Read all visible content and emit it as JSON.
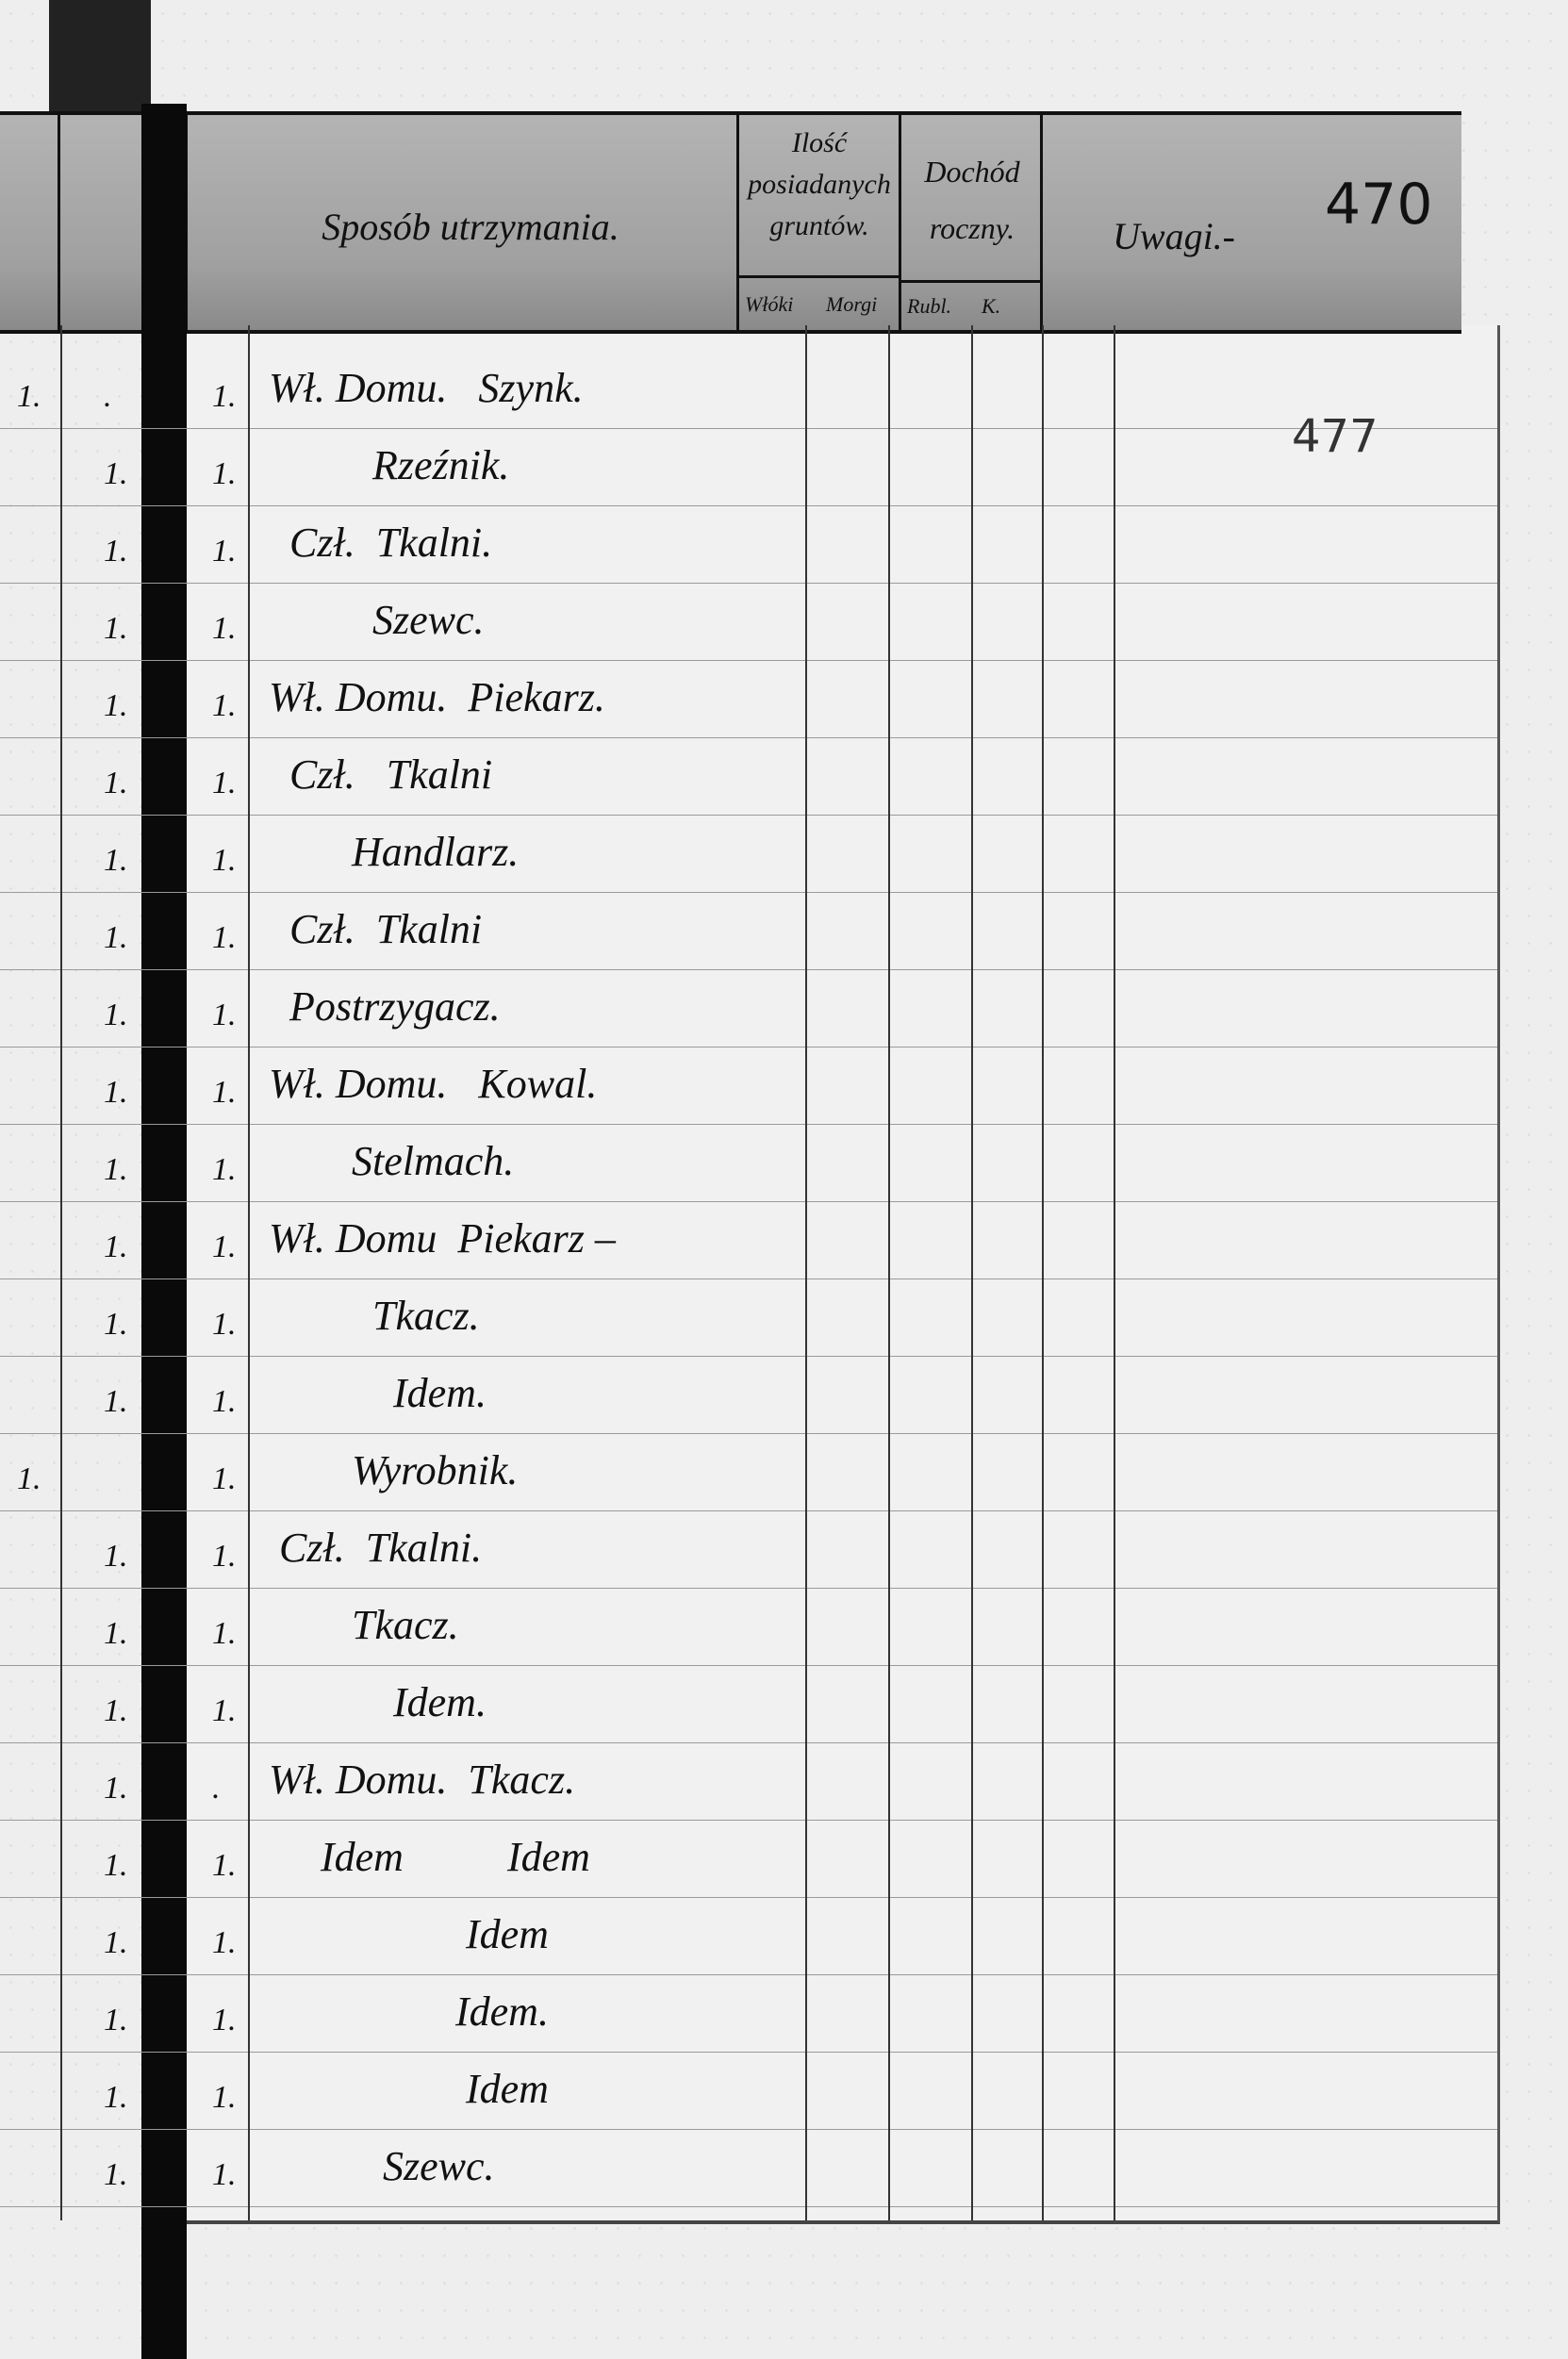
{
  "header": {
    "occupation": "Sposób utrzymania.",
    "land": "Ilość posiadanych gruntów.",
    "land_sub": [
      "Włóki",
      "Morgi"
    ],
    "income": "Dochód roczny.",
    "income_sub": [
      "Rubl.",
      "K."
    ],
    "remarks": "Uwagi.-",
    "page_number": "470"
  },
  "page_number_pencil": "477",
  "rows": [
    {
      "a": "1.",
      "b": ".",
      "c": "1.",
      "text": "Wł. Domu.   Szynk."
    },
    {
      "a": "",
      "b": "1.",
      "c": "1.",
      "text": "          Rzeźnik."
    },
    {
      "a": "",
      "b": "1.",
      "c": "1.",
      "text": "  Czł.  Tkalni."
    },
    {
      "a": "",
      "b": "1.",
      "c": "1.",
      "text": "          Szewc."
    },
    {
      "a": "",
      "b": "1.",
      "c": "1.",
      "text": "Wł. Domu.  Piekarz."
    },
    {
      "a": "",
      "b": "1.",
      "c": "1.",
      "text": "  Czł.   Tkalni"
    },
    {
      "a": "",
      "b": "1.",
      "c": "1.",
      "text": "        Handlarz."
    },
    {
      "a": "",
      "b": "1.",
      "c": "1.",
      "text": "  Czł.  Tkalni"
    },
    {
      "a": "",
      "b": "1.",
      "c": "1.",
      "text": "  Postrzygacz."
    },
    {
      "a": "",
      "b": "1.",
      "c": "1.",
      "text": "Wł. Domu.   Kowal."
    },
    {
      "a": "",
      "b": "1.",
      "c": "1.",
      "text": "        Stelmach."
    },
    {
      "a": "",
      "b": "1.",
      "c": "1.",
      "text": "Wł. Domu  Piekarz –"
    },
    {
      "a": "",
      "b": "1.",
      "c": "1.",
      "text": "          Tkacz."
    },
    {
      "a": "",
      "b": "1.",
      "c": "1.",
      "text": "            Idem."
    },
    {
      "a": "1.",
      "b": "",
      "c": "1.",
      "text": "        Wyrobnik."
    },
    {
      "a": "",
      "b": "1.",
      "c": "1.",
      "text": " Czł.  Tkalni."
    },
    {
      "a": "",
      "b": "1.",
      "c": "1.",
      "text": "        Tkacz."
    },
    {
      "a": "",
      "b": "1.",
      "c": "1.",
      "text": "            Idem."
    },
    {
      "a": "",
      "b": "1.",
      "c": ".",
      "text": "Wł. Domu.  Tkacz."
    },
    {
      "a": "",
      "b": "1.",
      "c": "1.",
      "text": "     Idem          Idem"
    },
    {
      "a": "",
      "b": "1.",
      "c": "1.",
      "text": "                   Idem"
    },
    {
      "a": "",
      "b": "1.",
      "c": "1.",
      "text": "                  Idem."
    },
    {
      "a": "",
      "b": "1.",
      "c": "1.",
      "text": "                   Idem"
    },
    {
      "a": "",
      "b": "1.",
      "c": "1.",
      "text": "           Szewc."
    }
  ]
}
